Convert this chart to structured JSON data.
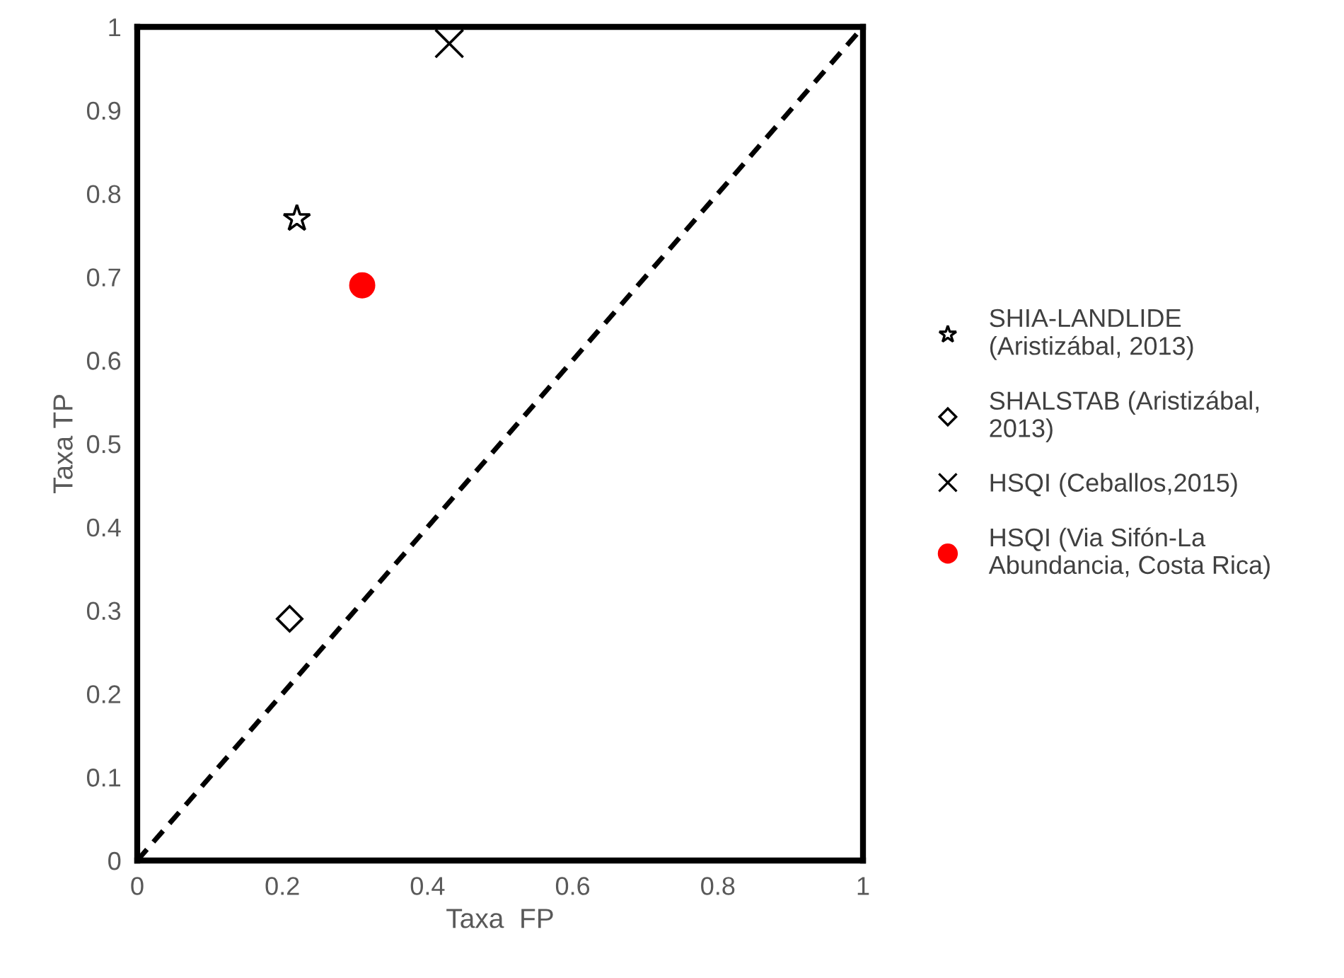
{
  "chart_data": {
    "type": "scatter",
    "xlabel": "Taxa  FP",
    "ylabel": "Taxa TP",
    "xlim": [
      0,
      1
    ],
    "ylim": [
      0,
      1
    ],
    "xticks": [
      0,
      0.2,
      0.4,
      0.6,
      0.8,
      1
    ],
    "yticks": [
      0,
      0.1,
      0.2,
      0.3,
      0.4,
      0.5,
      0.6,
      0.7,
      0.8,
      0.9,
      1
    ],
    "grid": false,
    "legend": "right",
    "series": [
      {
        "name": "SHIA-LANDLIDE\n(Aristizábal, 2013)",
        "color": "#000000",
        "marker": "star",
        "x": [
          0.22
        ],
        "values": [
          0.77
        ]
      },
      {
        "name": "SHALSTAB (Aristizábal,\n2013)",
        "color": "#000000",
        "marker": "diamond",
        "x": [
          0.21
        ],
        "values": [
          0.29
        ]
      },
      {
        "name": "HSQI (Ceballos,2015)",
        "color": "#000000",
        "marker": "cross",
        "x": [
          0.43
        ],
        "values": [
          0.98
        ]
      },
      {
        "name": "HSQI (Via Sifón-La\nAbundancia, Costa Rica)",
        "color": "#ff0000",
        "marker": "circle",
        "x": [
          0.31
        ],
        "values": [
          0.69
        ]
      },
      {
        "type": "line",
        "color": "#000000",
        "line_style": "dashed",
        "marker": "none",
        "x": [
          0,
          1
        ],
        "values": [
          0,
          1
        ]
      }
    ]
  }
}
